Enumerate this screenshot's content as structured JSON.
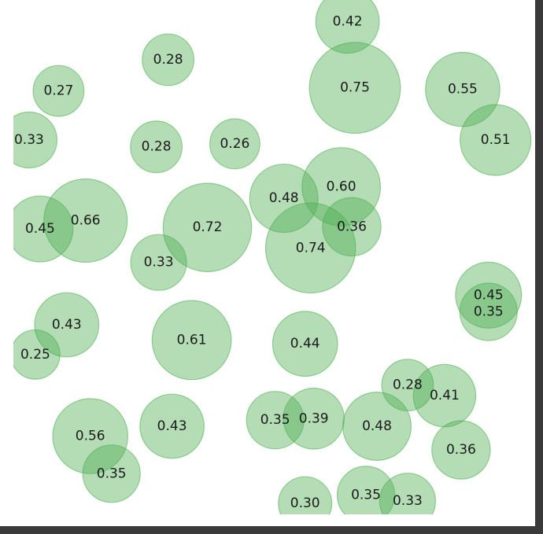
{
  "chart_data": {
    "type": "scatter",
    "marker": "circle",
    "color": "#4caf50",
    "x_range": [
      0,
      1
    ],
    "y_range": [
      0,
      1
    ],
    "axes_visible": false,
    "grid": false,
    "points": [
      {
        "x": 0.6634,
        "y": 1.0043,
        "size": 0.42,
        "label": "0.42"
      },
      {
        "x": 0.3072,
        "y": 0.9263,
        "size": 0.28,
        "label": "0.28"
      },
      {
        "x": 0.6781,
        "y": 0.869,
        "size": 0.75,
        "label": "0.75"
      },
      {
        "x": 0.0897,
        "y": 0.8628,
        "size": 0.27,
        "label": "0.27"
      },
      {
        "x": 0.8921,
        "y": 0.8659,
        "size": 0.55,
        "label": "0.55"
      },
      {
        "x": 0.0311,
        "y": 0.7628,
        "size": 0.33,
        "label": "0.33"
      },
      {
        "x": 0.9574,
        "y": 0.7628,
        "size": 0.51,
        "label": "0.51"
      },
      {
        "x": 0.2838,
        "y": 0.7488,
        "size": 0.28,
        "label": "0.28"
      },
      {
        "x": 0.4397,
        "y": 0.755,
        "size": 0.26,
        "label": "0.26"
      },
      {
        "x": 0.651,
        "y": 0.6674,
        "size": 0.6,
        "label": "0.60"
      },
      {
        "x": 0.5371,
        "y": 0.6441,
        "size": 0.48,
        "label": "0.48"
      },
      {
        "x": 0.1433,
        "y": 0.5986,
        "size": 0.66,
        "label": "0.66"
      },
      {
        "x": 0.3852,
        "y": 0.5846,
        "size": 0.72,
        "label": "0.72"
      },
      {
        "x": 0.053,
        "y": 0.5815,
        "size": 0.45,
        "label": "0.45"
      },
      {
        "x": 0.6719,
        "y": 0.5861,
        "size": 0.36,
        "label": "0.36"
      },
      {
        "x": 0.5902,
        "y": 0.5428,
        "size": 0.74,
        "label": "0.74"
      },
      {
        "x": 0.2885,
        "y": 0.5133,
        "size": 0.33,
        "label": "0.33"
      },
      {
        "x": 0.9434,
        "y": 0.4467,
        "size": 0.45,
        "label": "0.45"
      },
      {
        "x": 0.9434,
        "y": 0.4126,
        "size": 0.35,
        "label": "0.35"
      },
      {
        "x": 0.1059,
        "y": 0.3862,
        "size": 0.43,
        "label": "0.43"
      },
      {
        "x": 0.354,
        "y": 0.3552,
        "size": 0.61,
        "label": "0.61"
      },
      {
        "x": 0.5792,
        "y": 0.3474,
        "size": 0.44,
        "label": "0.44"
      },
      {
        "x": 0.0436,
        "y": 0.3257,
        "size": 0.25,
        "label": "0.25"
      },
      {
        "x": 0.7826,
        "y": 0.2635,
        "size": 0.28,
        "label": "0.28"
      },
      {
        "x": 0.8561,
        "y": 0.2418,
        "size": 0.41,
        "label": "0.41"
      },
      {
        "x": 0.315,
        "y": 0.1795,
        "size": 0.43,
        "label": "0.43"
      },
      {
        "x": 0.5199,
        "y": 0.192,
        "size": 0.35,
        "label": "0.35"
      },
      {
        "x": 0.5964,
        "y": 0.1951,
        "size": 0.39,
        "label": "0.39"
      },
      {
        "x": 0.7218,
        "y": 0.1795,
        "size": 0.48,
        "label": "0.48"
      },
      {
        "x": 0.1527,
        "y": 0.1593,
        "size": 0.56,
        "label": "0.56"
      },
      {
        "x": 0.8889,
        "y": 0.1313,
        "size": 0.36,
        "label": "0.36"
      },
      {
        "x": 0.1948,
        "y": 0.0829,
        "size": 0.35,
        "label": "0.35"
      },
      {
        "x": 0.7,
        "y": 0.0394,
        "size": 0.35,
        "label": "0.35"
      },
      {
        "x": 0.7826,
        "y": 0.0269,
        "size": 0.33,
        "label": "0.33"
      },
      {
        "x": 0.5792,
        "y": 0.0222,
        "size": 0.3,
        "label": "0.30"
      }
    ]
  }
}
